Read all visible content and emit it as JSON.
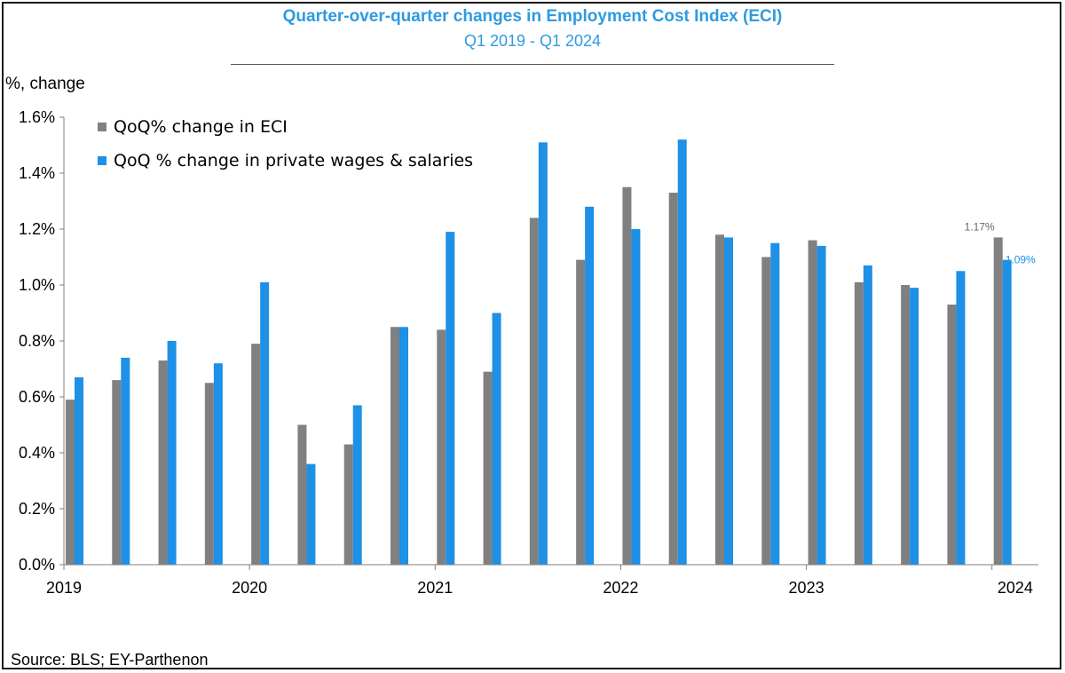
{
  "header": {
    "title": "Quarter-over-quarter changes in Employment  Cost Index (ECI)",
    "subtitle": "Q1 2019 - Q1 2024"
  },
  "footer": {
    "source": "Source: BLS; EY-Parthenon"
  },
  "colors": {
    "eci": "#808080",
    "wages": "#1e90e6",
    "title": "#2e9be0"
  },
  "chart_data": {
    "type": "bar",
    "ylabel": "%, change",
    "ylim": [
      0,
      0.016
    ],
    "yticks": [
      0,
      0.002,
      0.004,
      0.006,
      0.008,
      0.01,
      0.012,
      0.014,
      0.016
    ],
    "ytick_labels": [
      "0.0%",
      "0.2%",
      "0.4%",
      "0.6%",
      "0.8%",
      "1.0%",
      "1.2%",
      "1.4%",
      "1.6%"
    ],
    "categories": [
      "2019",
      "",
      "",
      "",
      "2020",
      "",
      "",
      "",
      "2021",
      "",
      "",
      "",
      "2022",
      "",
      "",
      "",
      "2023",
      "",
      "",
      "",
      "2024"
    ],
    "xtick_labels": [
      "2019",
      "2020",
      "2021",
      "2022",
      "2023",
      "2024"
    ],
    "legend_position": "top-left",
    "grid": false,
    "series": [
      {
        "name": "QoQ% change in ECI",
        "color": "#808080",
        "values": [
          0.0059,
          0.0066,
          0.0073,
          0.0065,
          0.0079,
          0.005,
          0.0043,
          0.0085,
          0.0084,
          0.0069,
          0.0124,
          0.0109,
          0.0135,
          0.0133,
          0.0118,
          0.011,
          0.0116,
          0.0101,
          0.01,
          0.0093,
          0.0117
        ]
      },
      {
        "name": "QoQ % change in private wages & salaries",
        "color": "#1e90e6",
        "values": [
          0.0067,
          0.0074,
          0.008,
          0.0072,
          0.0101,
          0.0036,
          0.0057,
          0.0085,
          0.0119,
          0.009,
          0.0151,
          0.0128,
          0.012,
          0.0152,
          0.0117,
          0.0115,
          0.0114,
          0.0107,
          0.0099,
          0.0105,
          0.0109
        ]
      }
    ],
    "annotations": [
      {
        "series": 0,
        "index": 20,
        "text": "1.17%"
      },
      {
        "series": 1,
        "index": 20,
        "text": "1.09%"
      }
    ]
  }
}
